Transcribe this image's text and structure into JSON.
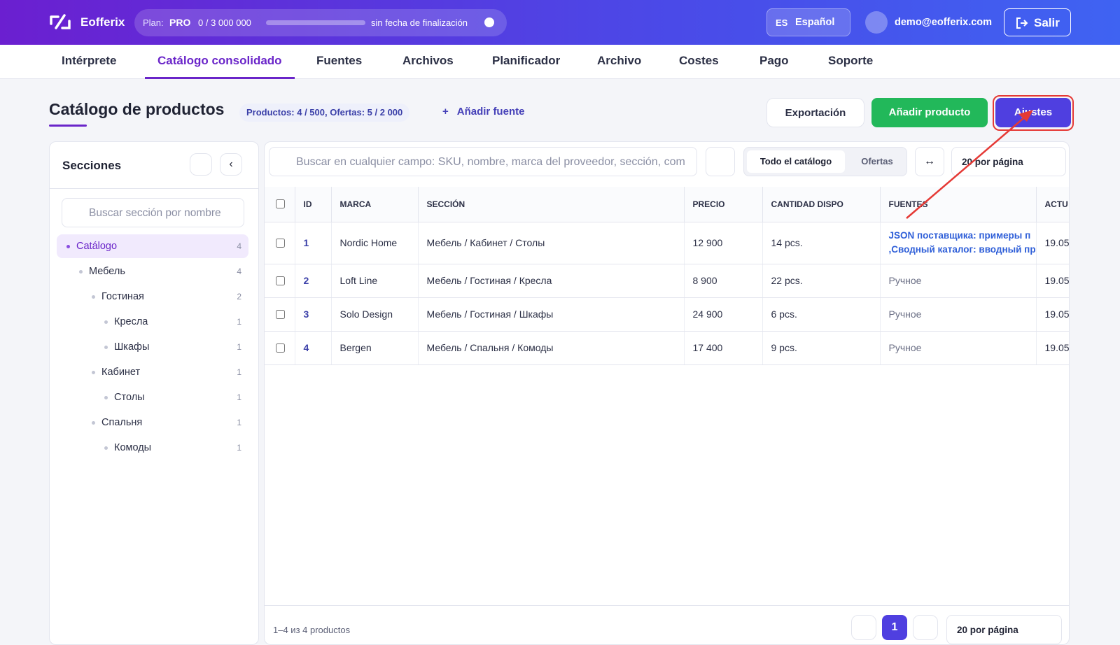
{
  "header": {
    "brand": "Eofferix",
    "plan_label": "Plan:",
    "plan": "PRO",
    "usage": "0 / 3 000 000",
    "plan_end": "sin fecha de finalización",
    "lang_code": "ES",
    "lang": "Español",
    "user": "demo@eofferix.com",
    "logout": "Salir"
  },
  "nav": {
    "items": [
      "Intérprete",
      "Catálogo consolidado",
      "Fuentes",
      "Archivos",
      "Planificador",
      "Archivo",
      "Costes",
      "Pago",
      "Soporte"
    ],
    "active": 1
  },
  "page": {
    "title": "Catálogo de productos",
    "stats": "Productos: 4 / 500, Ofertas: 5 / 2 000",
    "add_source": "Añadir fuente",
    "export": "Exportación",
    "add_product": "Añadir producto",
    "settings": "Ajustes"
  },
  "sidebar": {
    "title": "Secciones",
    "search_placeholder": "Buscar sección por nombre",
    "tree": [
      {
        "label": "Catálogo",
        "count": "4",
        "level": 0
      },
      {
        "label": "Мебель",
        "count": "4",
        "level": 1
      },
      {
        "label": "Гостиная",
        "count": "2",
        "level": 2
      },
      {
        "label": "Кресла",
        "count": "1",
        "level": 3
      },
      {
        "label": "Шкафы",
        "count": "1",
        "level": 3
      },
      {
        "label": "Кабинет",
        "count": "1",
        "level": 2
      },
      {
        "label": "Столы",
        "count": "1",
        "level": 3
      },
      {
        "label": "Спальня",
        "count": "1",
        "level": 2
      },
      {
        "label": "Комоды",
        "count": "1",
        "level": 3
      }
    ]
  },
  "toolbar": {
    "search_placeholder": "Buscar en cualquier campo: SKU, nombre, marca del proveedor, sección, com",
    "tabs": [
      "Todo el catálogo",
      "Ofertas"
    ],
    "per_page": "20 por página"
  },
  "table": {
    "columns": [
      "ID",
      "MARCA",
      "SECCIÓN",
      "PRECIO",
      "CANTIDAD DISPO",
      "FUENTES",
      "ACTU"
    ],
    "rows": [
      [
        "1",
        "Nordic Home",
        "Мебель / Кабинет / Столы",
        "12 900",
        "14 pcs.",
        "JSON поставщика: примеры п\n,Сводный каталог: вводный пр",
        "19.05"
      ],
      [
        "2",
        "Loft Line",
        "Мебель / Гостиная / Кресла",
        "8 900",
        "22 pcs.",
        "Ручное",
        "19.05"
      ],
      [
        "3",
        "Solo Design",
        "Мебель / Гостиная / Шкафы",
        "24 900",
        "6 pcs.",
        "Ручное",
        "19.05"
      ],
      [
        "4",
        "Bergen",
        "Мебель / Спальня / Комоды",
        "17 400",
        "9 pcs.",
        "Ручное",
        "19.05"
      ]
    ]
  },
  "footer": {
    "summary": "1–4 из 4 productos",
    "page": "1",
    "per_page": "20 por página"
  }
}
